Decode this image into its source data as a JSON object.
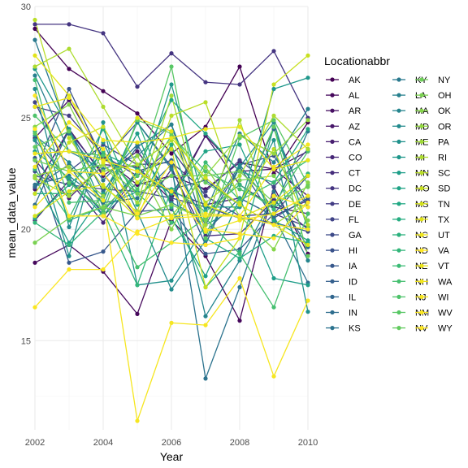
{
  "chart_data": {
    "type": "line",
    "xlabel": "Year",
    "ylabel": "mean_data_value",
    "xlim": [
      2002,
      2010
    ],
    "ylim": [
      11,
      30
    ],
    "x_ticks": [
      2002,
      2004,
      2006,
      2008,
      2010
    ],
    "y_ticks": [
      15,
      20,
      25,
      30
    ],
    "grid": true,
    "legend": {
      "title": "Locationabbr",
      "placement": "right",
      "columns": 3
    },
    "x": [
      2002,
      2003,
      2004,
      2005,
      2006,
      2007,
      2008,
      2009,
      2010
    ],
    "series": [
      {
        "name": "AK",
        "color": "#440154",
        "values": [
          29.0,
          27.2,
          26.2,
          25.2,
          23.4,
          24.6,
          27.3,
          22.5,
          24.8
        ]
      },
      {
        "name": "AL",
        "color": "#46085C",
        "values": [
          18.5,
          19.3,
          18.1,
          16.2,
          20.4,
          18.8,
          15.9,
          21.9,
          18.9
        ]
      },
      {
        "name": "AR",
        "color": "#471063",
        "values": [
          24.1,
          25.8,
          23.2,
          22.0,
          22.4,
          21.8,
          23.0,
          22.7,
          21.5
        ]
      },
      {
        "name": "AZ",
        "color": "#48186A",
        "values": [
          21.8,
          24.5,
          22.4,
          23.5,
          21.5,
          24.2,
          22.6,
          22.7,
          23.5
        ]
      },
      {
        "name": "CA",
        "color": "#481F70",
        "values": [
          23.1,
          21.4,
          22.9,
          22.8,
          21.3,
          24.2,
          22.0,
          21.0,
          20.7
        ]
      },
      {
        "name": "CO",
        "color": "#472777",
        "values": [
          20.4,
          22.2,
          20.3,
          22.6,
          21.7,
          21.1,
          21.4,
          20.6,
          21.3
        ]
      },
      {
        "name": "CT",
        "color": "#472E7C",
        "values": [
          21.9,
          24.4,
          22.5,
          20.5,
          22.7,
          19.7,
          19.8,
          21.3,
          20.0
        ]
      },
      {
        "name": "DC",
        "color": "#453581",
        "values": [
          29.2,
          29.2,
          28.8,
          26.4,
          27.9,
          26.6,
          26.5,
          28.0,
          25.0
        ]
      },
      {
        "name": "DE",
        "color": "#433C84",
        "values": [
          25.5,
          25.1,
          23.3,
          22.4,
          23.6,
          21.5,
          20.6,
          20.7,
          20.1
        ]
      },
      {
        "name": "FL",
        "color": "#404387",
        "values": [
          25.7,
          22.6,
          23.8,
          22.9,
          23.0,
          21.7,
          23.1,
          21.9,
          23.6
        ]
      },
      {
        "name": "GA",
        "color": "#3D4A89",
        "values": [
          22.4,
          22.0,
          21.8,
          21.7,
          21.4,
          21.0,
          20.5,
          20.3,
          19.9
        ]
      },
      {
        "name": "HI",
        "color": "#3A528B",
        "values": [
          22.6,
          26.3,
          23.1,
          24.8,
          22.8,
          19.3,
          22.9,
          23.3,
          21.0
        ]
      },
      {
        "name": "IA",
        "color": "#37588C",
        "values": [
          23.2,
          18.5,
          19.0,
          20.8,
          20.9,
          18.9,
          19.1,
          20.7,
          22.4
        ]
      },
      {
        "name": "ID",
        "color": "#345F8D",
        "values": [
          24.0,
          22.2,
          20.8,
          22.6,
          23.1,
          20.2,
          22.8,
          20.5,
          21.4
        ]
      },
      {
        "name": "IL",
        "color": "#31668E",
        "values": [
          21.9,
          22.9,
          20.6,
          22.1,
          21.8,
          22.2,
          21.1,
          24.5,
          21.0
        ]
      },
      {
        "name": "IN",
        "color": "#2E6D8E",
        "values": [
          21.1,
          24.5,
          21.7,
          23.7,
          24.7,
          19.9,
          21.4,
          20.6,
          17.6
        ]
      },
      {
        "name": "KS",
        "color": "#2C738E",
        "values": [
          22.0,
          22.4,
          21.2,
          21.4,
          22.9,
          13.3,
          17.4,
          21.7,
          19.2
        ]
      },
      {
        "name": "KY",
        "color": "#2A798E",
        "values": [
          28.5,
          24.3,
          22.2,
          23.8,
          21.2,
          20.4,
          22.9,
          20.9,
          24.4
        ]
      },
      {
        "name": "LA",
        "color": "#27808E",
        "values": [
          26.9,
          23.5,
          22.7,
          23.3,
          24.7,
          20.8,
          24.3,
          23.0,
          25.4
        ]
      },
      {
        "name": "MA",
        "color": "#25858E",
        "values": [
          24.2,
          23.0,
          21.3,
          24.8,
          22.7,
          16.1,
          18.6,
          21.5,
          18.6
        ]
      },
      {
        "name": "MD",
        "color": "#238B8D",
        "values": [
          26.3,
          20.1,
          23.9,
          20.8,
          17.3,
          19.5,
          22.8,
          24.8,
          20.0
        ]
      },
      {
        "name": "ME",
        "color": "#21918C",
        "values": [
          24.0,
          18.8,
          24.8,
          17.5,
          17.7,
          20.2,
          21.0,
          24.0,
          16.3
        ]
      },
      {
        "name": "MI",
        "color": "#1F978B",
        "values": [
          27.2,
          24.5,
          21.0,
          21.7,
          26.5,
          21.0,
          21.0,
          26.3,
          26.8
        ]
      },
      {
        "name": "MN",
        "color": "#1F9E89",
        "values": [
          22.3,
          19.4,
          21.6,
          24.3,
          20.5,
          17.9,
          21.4,
          17.8,
          17.5
        ]
      },
      {
        "name": "MO",
        "color": "#20A386",
        "values": [
          23.5,
          22.3,
          20.6,
          22.6,
          21.6,
          23.5,
          23.8,
          20.4,
          19.5
        ]
      },
      {
        "name": "MS",
        "color": "#22A884",
        "values": [
          20.5,
          22.0,
          23.4,
          22.7,
          25.8,
          24.3,
          22.6,
          22.1,
          24.5
        ]
      },
      {
        "name": "MT",
        "color": "#26AD81",
        "values": [
          21.6,
          21.6,
          24.5,
          21.1,
          23.8,
          19.6,
          18.7,
          19.7,
          19.4
        ]
      },
      {
        "name": "NC",
        "color": "#2CB17E",
        "values": [
          24.4,
          20.4,
          21.0,
          24.9,
          21.0,
          17.4,
          19.0,
          24.6,
          20.1
        ]
      },
      {
        "name": "ND",
        "color": "#33B67A",
        "values": [
          20.3,
          19.3,
          20.8,
          17.5,
          21.8,
          20.8,
          22.0,
          20.9,
          22.5
        ]
      },
      {
        "name": "NE",
        "color": "#3BBB75",
        "values": [
          22.7,
          20.5,
          23.5,
          21.6,
          20.3,
          23.0,
          21.3,
          22.1,
          23.1
        ]
      },
      {
        "name": "NH",
        "color": "#45BF70",
        "values": [
          26.7,
          21.2,
          21.3,
          18.3,
          19.4,
          20.5,
          18.9,
          16.5,
          20.7
        ]
      },
      {
        "name": "NJ",
        "color": "#4EC36B",
        "values": [
          25.1,
          23.5,
          23.3,
          21.8,
          24.2,
          22.6,
          21.8,
          21.1,
          23.5
        ]
      },
      {
        "name": "NM",
        "color": "#58C765",
        "values": [
          24.3,
          22.1,
          20.9,
          22.4,
          27.3,
          19.6,
          24.1,
          24.9,
          22.0
        ]
      },
      {
        "name": "NV",
        "color": "#63CB5F",
        "values": [
          23.7,
          24.4,
          20.7,
          24.9,
          24.3,
          22.1,
          21.1,
          24.6,
          18.8
        ]
      },
      {
        "name": "NY",
        "color": "#6ECE58",
        "values": [
          23.1,
          22.6,
          22.9,
          21.6,
          22.4,
          22.4,
          22.6,
          21.2,
          21.9
        ]
      },
      {
        "name": "OH",
        "color": "#7AD151",
        "values": [
          19.4,
          20.5,
          21.0,
          20.6,
          21.1,
          20.4,
          22.2,
          22.4,
          20.4
        ]
      },
      {
        "name": "OK",
        "color": "#86D549",
        "values": [
          24.6,
          25.6,
          22.6,
          22.9,
          20.0,
          22.8,
          20.6,
          19.1,
          22.1
        ]
      },
      {
        "name": "OR",
        "color": "#93D741",
        "values": [
          22.4,
          22.8,
          21.5,
          23.3,
          20.6,
          22.4,
          24.2,
          23.4,
          24.9
        ]
      },
      {
        "name": "PA",
        "color": "#A0DA39",
        "values": [
          22.3,
          21.5,
          22.9,
          21.2,
          26.0,
          20.2,
          24.9,
          20.2,
          21.2
        ]
      },
      {
        "name": "RI",
        "color": "#ADDC30",
        "values": [
          27.3,
          28.1,
          25.5,
          22.9,
          24.0,
          21.2,
          22.4,
          25.1,
          23.6
        ]
      },
      {
        "name": "SC",
        "color": "#BADE28",
        "values": [
          29.4,
          24.1,
          21.9,
          20.8,
          25.1,
          25.7,
          21.2,
          23.6,
          20.2
        ]
      },
      {
        "name": "SD",
        "color": "#C8E020",
        "values": [
          21.6,
          23.9,
          24.6,
          22.1,
          23.6,
          17.4,
          19.6,
          26.5,
          27.8
        ]
      },
      {
        "name": "TN",
        "color": "#D5E21A",
        "values": [
          20.6,
          21.7,
          22.0,
          20.5,
          24.1,
          22.3,
          21.1,
          20.2,
          19.3
        ]
      },
      {
        "name": "TX",
        "color": "#E2E418",
        "values": [
          27.8,
          26.0,
          23.0,
          25.0,
          24.4,
          21.1,
          20.5,
          21.2,
          22.4
        ]
      },
      {
        "name": "UT",
        "color": "#EFE51C",
        "values": [
          23.4,
          23.5,
          23.1,
          22.6,
          21.7,
          19.9,
          20.4,
          20.7,
          21.5
        ]
      },
      {
        "name": "VA",
        "color": "#FDE725",
        "values": [
          26.0,
          22.6,
          22.5,
          20.7,
          23.0,
          20.0,
          19.8,
          19.6,
          21.2
        ]
      },
      {
        "name": "VT",
        "color": "#ECE51B",
        "values": [
          25.5,
          25.9,
          24.0,
          23.9,
          24.1,
          24.5,
          24.6,
          22.7,
          23.1
        ]
      },
      {
        "name": "WA",
        "color": "#F3E61E",
        "values": [
          22.8,
          24.8,
          23.6,
          20.5,
          20.6,
          20.7,
          20.6,
          22.8,
          23.8
        ]
      },
      {
        "name": "WI",
        "color": "#F6E620",
        "values": [
          21.0,
          22.6,
          21.3,
          11.4,
          15.8,
          15.7,
          17.8,
          13.4,
          16.8
        ]
      },
      {
        "name": "WV",
        "color": "#FAE622",
        "values": [
          16.5,
          18.2,
          18.2,
          19.9,
          20.5,
          20.6,
          20.6,
          20.2,
          20.0
        ]
      },
      {
        "name": "WY",
        "color": "#FDE725",
        "values": [
          24.5,
          20.6,
          20.6,
          19.8,
          19.4,
          19.3,
          19.6,
          21.5,
          21.0
        ]
      }
    ]
  }
}
